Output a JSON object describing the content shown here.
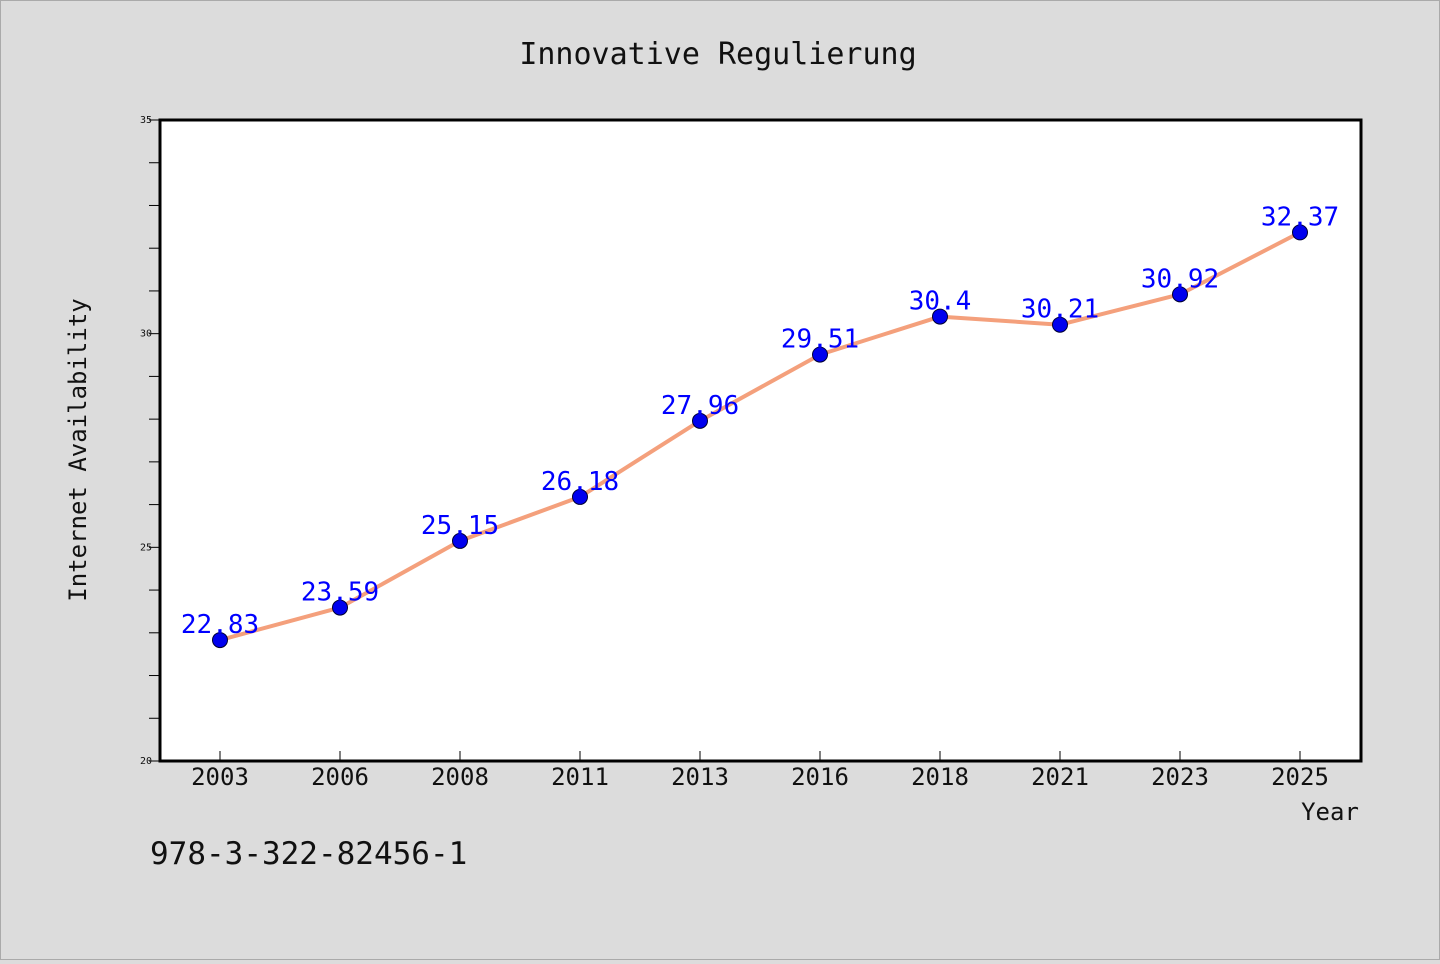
{
  "chart_data": {
    "type": "line",
    "title": "Innovative Regulierung",
    "xlabel": "Year",
    "ylabel": "Internet Availability",
    "categories": [
      "2003",
      "2006",
      "2008",
      "2011",
      "2013",
      "2016",
      "2018",
      "2021",
      "2023",
      "2025"
    ],
    "series": [
      {
        "values": [
          22.83,
          23.59,
          25.15,
          26.18,
          27.96,
          29.51,
          30.4,
          30.21,
          30.92,
          32.37
        ],
        "labels": [
          "22.83",
          "23.59",
          "25.15",
          "26.18",
          "27.96",
          "29.51",
          "30.4",
          "30.21",
          "30.92",
          "32.37"
        ]
      }
    ],
    "ylim": [
      20,
      35
    ],
    "yticks": [
      "20",
      "25",
      "30",
      "35"
    ],
    "grid": false,
    "colors": {
      "line": "#f4a07c",
      "marker": "#0000ee",
      "label": "#0000ff",
      "background": "#dcdcdc",
      "plot_background": "#ffffff"
    }
  },
  "footer_text": "978-3-322-82456-1"
}
